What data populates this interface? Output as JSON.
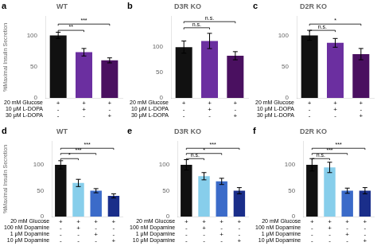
{
  "chart_data": [
    {
      "type": "bar",
      "title": "WT",
      "panel_label": "a",
      "ylabel": "%Maximal Insulin Secretion",
      "categories": [
        null,
        null,
        null
      ],
      "values": [
        100,
        73,
        60
      ],
      "errors": [
        5,
        6,
        4
      ],
      "colors": [
        "#111111",
        "#6b2fa0",
        "#4a1060"
      ],
      "ylim": [
        0,
        130
      ],
      "yticks": [
        0,
        50,
        100
      ],
      "grid": false,
      "annotations": [
        {
          "x1": 0,
          "x2": 1,
          "y": 108,
          "text": "**"
        },
        {
          "x1": 0,
          "x2": 2,
          "y": 118,
          "text": "***"
        }
      ],
      "row_labels": [
        "20 mM Glucose",
        "10 μM L-DOPA",
        "30 μM L-DOPA"
      ],
      "row_signs": [
        [
          "+",
          "+",
          "+"
        ],
        [
          "-",
          "+",
          "-"
        ],
        [
          "-",
          "-",
          "+"
        ]
      ]
    },
    {
      "type": "bar",
      "title": "D3R KO",
      "panel_label": "b",
      "categories": [
        null,
        null,
        null
      ],
      "values": [
        100,
        112,
        83
      ],
      "errors": [
        12,
        15,
        8
      ],
      "colors": [
        "#111111",
        "#6b2fa0",
        "#4a1060"
      ],
      "ylim": [
        0,
        160
      ],
      "yticks": [
        0,
        50,
        100
      ],
      "grid": false,
      "annotations": [
        {
          "x1": 0,
          "x2": 1,
          "y": 138,
          "text": "n.s."
        },
        {
          "x1": 0,
          "x2": 2,
          "y": 150,
          "text": "n.s."
        }
      ],
      "row_labels": [
        "20 mM Glucose",
        "10 μM L-DOPA",
        "30 μM L-DOPA"
      ],
      "row_signs": [
        [
          "+",
          "+",
          "+"
        ],
        [
          "-",
          "+",
          "-"
        ],
        [
          "-",
          "-",
          "+"
        ]
      ]
    },
    {
      "type": "bar",
      "title": "D2R KO",
      "panel_label": "c",
      "categories": [
        null,
        null,
        null
      ],
      "values": [
        100,
        88,
        70
      ],
      "errors": [
        8,
        7,
        9
      ],
      "colors": [
        "#111111",
        "#6b2fa0",
        "#4a1060"
      ],
      "ylim": [
        0,
        130
      ],
      "yticks": [
        0,
        50,
        100
      ],
      "grid": false,
      "annotations": [
        {
          "x1": 0,
          "x2": 1,
          "y": 108,
          "text": "n.s."
        },
        {
          "x1": 0,
          "x2": 2,
          "y": 118,
          "text": "*"
        }
      ],
      "row_labels": [
        "20 mM Glucose",
        "10 μM L-DOPA",
        "30 μM L-DOPA"
      ],
      "row_signs": [
        [
          "+",
          "+",
          "+"
        ],
        [
          "-",
          "+",
          "-"
        ],
        [
          "-",
          "-",
          "+"
        ]
      ]
    },
    {
      "type": "bar",
      "title": "WT",
      "panel_label": "d",
      "ylabel": "%Maximal Insulin Secretion",
      "categories": [
        null,
        null,
        null,
        null
      ],
      "values": [
        100,
        65,
        50,
        40
      ],
      "errors": [
        8,
        7,
        4,
        4
      ],
      "colors": [
        "#111111",
        "#87ceeb",
        "#3b6bc9",
        "#1a2e8a"
      ],
      "ylim": [
        0,
        145
      ],
      "yticks": [
        0,
        50,
        100
      ],
      "grid": false,
      "annotations": [
        {
          "x1": 0,
          "x2": 1,
          "y": 112,
          "text": "*"
        },
        {
          "x1": 0,
          "x2": 2,
          "y": 122,
          "text": "***"
        },
        {
          "x1": 0,
          "x2": 3,
          "y": 132,
          "text": "***"
        }
      ],
      "row_labels": [
        "20 mM Glucose",
        "100 nM Dopamine",
        "1 μM Dopamine",
        "10 μM Dopamine"
      ],
      "row_signs": [
        [
          "+",
          "+",
          "+",
          "+"
        ],
        [
          "-",
          "+",
          "-",
          "-"
        ],
        [
          "-",
          "-",
          "+",
          "-"
        ],
        [
          "-",
          "-",
          "-",
          "+"
        ]
      ]
    },
    {
      "type": "bar",
      "title": "D3R KO",
      "panel_label": "e",
      "categories": [
        null,
        null,
        null,
        null
      ],
      "values": [
        100,
        78,
        68,
        50
      ],
      "errors": [
        10,
        7,
        6,
        6
      ],
      "colors": [
        "#111111",
        "#87ceeb",
        "#3b6bc9",
        "#1a2e8a"
      ],
      "ylim": [
        0,
        145
      ],
      "yticks": [
        0,
        50,
        100
      ],
      "grid": false,
      "annotations": [
        {
          "x1": 0,
          "x2": 1,
          "y": 112,
          "text": "n.s."
        },
        {
          "x1": 0,
          "x2": 2,
          "y": 122,
          "text": "*"
        },
        {
          "x1": 0,
          "x2": 3,
          "y": 132,
          "text": "***"
        }
      ],
      "row_labels": [
        "20 mM Glucose",
        "100 nM Dopamine",
        "1 μM Dopamine",
        "10 μM Dopamine"
      ],
      "row_signs": [
        [
          "+",
          "+",
          "+",
          "+"
        ],
        [
          "-",
          "+",
          "-",
          "-"
        ],
        [
          "-",
          "-",
          "+",
          "-"
        ],
        [
          "-",
          "-",
          "-",
          "+"
        ]
      ]
    },
    {
      "type": "bar",
      "title": "D2R KO",
      "panel_label": "f",
      "categories": [
        null,
        null,
        null,
        null
      ],
      "values": [
        100,
        95,
        50,
        50
      ],
      "errors": [
        12,
        10,
        5,
        6
      ],
      "colors": [
        "#111111",
        "#87ceeb",
        "#3b6bc9",
        "#1a2e8a"
      ],
      "ylim": [
        0,
        145
      ],
      "yticks": [
        0,
        50,
        100
      ],
      "grid": false,
      "annotations": [
        {
          "x1": 0,
          "x2": 1,
          "y": 112,
          "text": "n.s."
        },
        {
          "x1": 0,
          "x2": 2,
          "y": 122,
          "text": "***"
        },
        {
          "x1": 0,
          "x2": 3,
          "y": 132,
          "text": "***"
        }
      ],
      "row_labels": [
        "20 mM Glucose",
        "100 nM Dopamine",
        "1 μM Dopamine",
        "10 μM Dopamine"
      ],
      "row_signs": [
        [
          "+",
          "+",
          "+",
          "+"
        ],
        [
          "-",
          "+",
          "-",
          "-"
        ],
        [
          "-",
          "-",
          "+",
          "-"
        ],
        [
          "-",
          "-",
          "-",
          "+"
        ]
      ]
    }
  ]
}
